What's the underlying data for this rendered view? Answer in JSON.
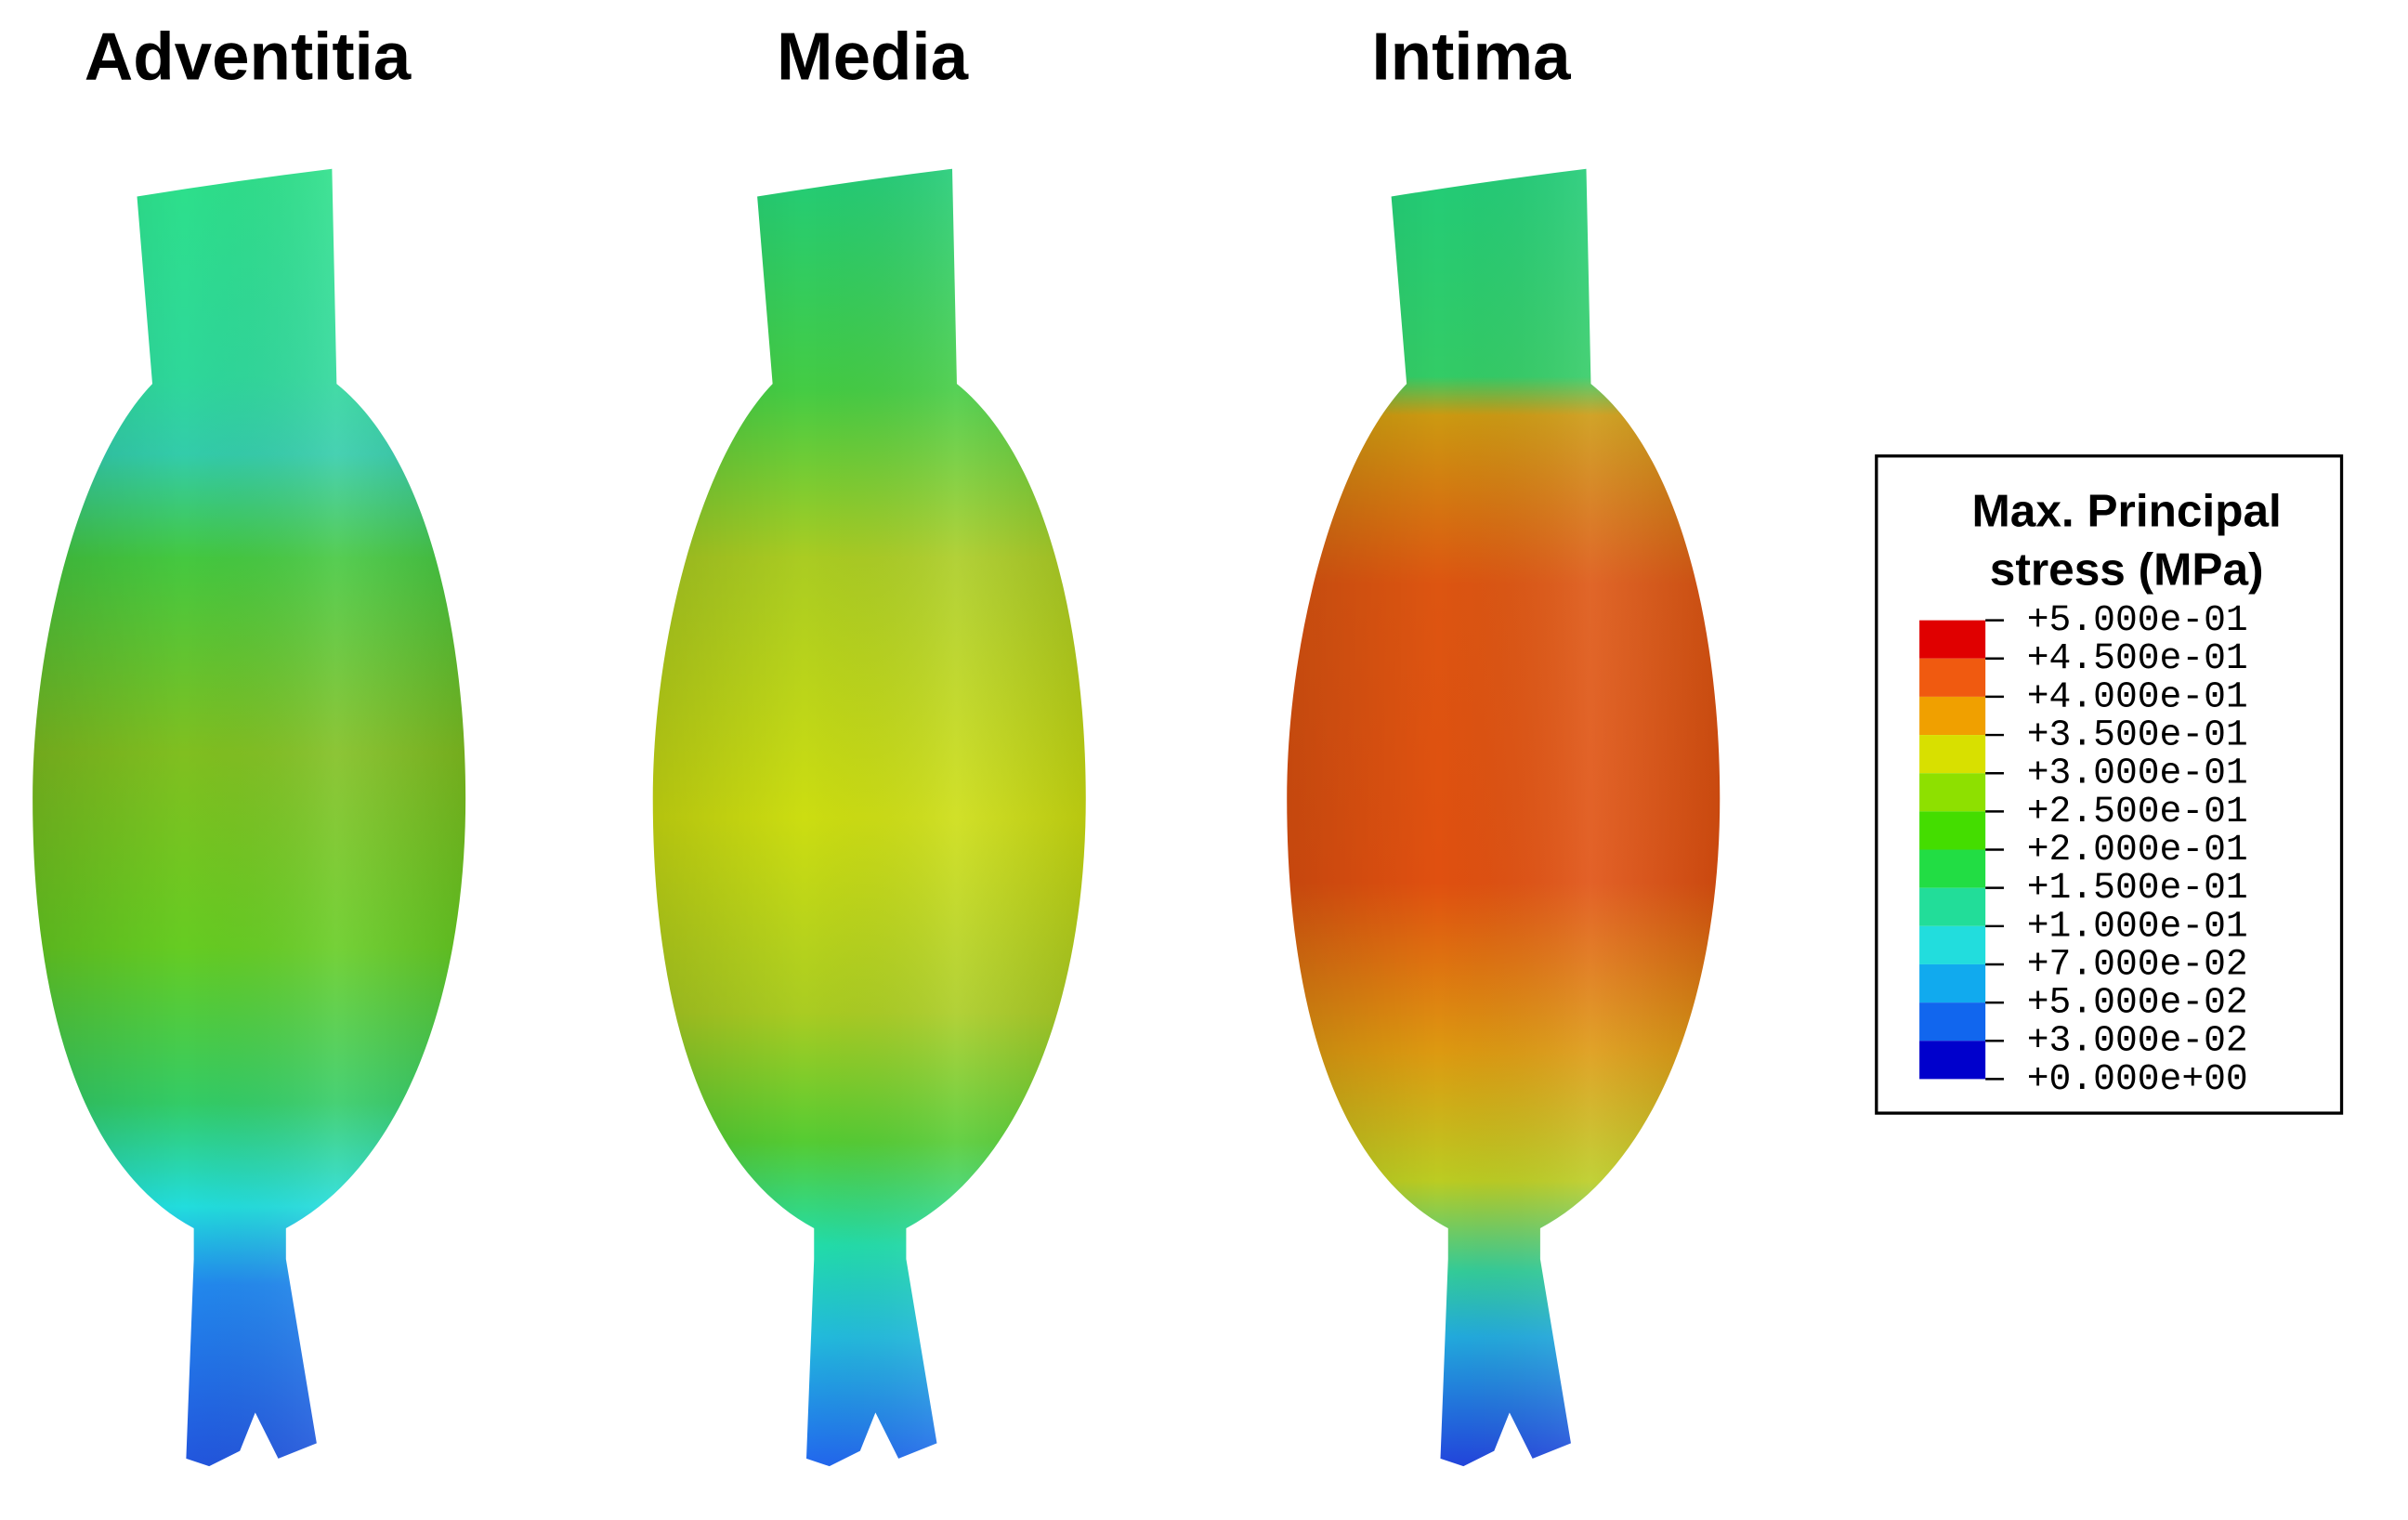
{
  "panels": [
    {
      "title": "Adventitia"
    },
    {
      "title": "Media"
    },
    {
      "title": "Intima"
    }
  ],
  "legend": {
    "title": [
      "Max. Principal",
      "stress (MPa)"
    ],
    "ticks": [
      {
        "value": 0.5,
        "label": "+5.000e-01"
      },
      {
        "value": 0.45,
        "label": "+4.500e-01"
      },
      {
        "value": 0.4,
        "label": "+4.000e-01"
      },
      {
        "value": 0.35,
        "label": "+3.500e-01"
      },
      {
        "value": 0.3,
        "label": "+3.000e-01"
      },
      {
        "value": 0.25,
        "label": "+2.500e-01"
      },
      {
        "value": 0.2,
        "label": "+2.000e-01"
      },
      {
        "value": 0.15,
        "label": "+1.500e-01"
      },
      {
        "value": 0.1,
        "label": "+1.000e-01"
      },
      {
        "value": 0.07,
        "label": "+7.000e-02"
      },
      {
        "value": 0.05,
        "label": "+5.000e-02"
      },
      {
        "value": 0.03,
        "label": "+3.000e-02"
      },
      {
        "value": 0,
        "label": "+0.000e+00"
      }
    ],
    "colors": [
      "#e00000",
      "#f05a10",
      "#f0a000",
      "#d8e000",
      "#8ee000",
      "#44dd00",
      "#22dd44",
      "#22dd99",
      "#22dddd",
      "#11aaee",
      "#1166ee",
      "#0000cc"
    ]
  }
}
